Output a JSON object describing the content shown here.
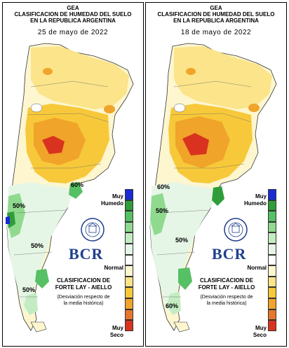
{
  "maps": [
    {
      "header_line1": "GEA",
      "header_line2": "CLASIFICACION DE HUMEDAD DEL SUELO",
      "header_line3": "EN LA REPUBLICA ARGENTINA",
      "date": "25 de mayo de 2022",
      "contour_labels": [
        "60%",
        "50%",
        "50%",
        "50%"
      ]
    },
    {
      "header_line1": "GEA",
      "header_line2": "CLASIFICACION DE HUMEDAD DEL SUELO",
      "header_line3": "EN LA REPUBLICA ARGENTINA",
      "date": "18 de mayo de 2022",
      "contour_labels": [
        "60%",
        "50%",
        "50%",
        "60%"
      ]
    }
  ],
  "legend": {
    "top_label": "Muy\nHumedo",
    "middle_label": "Normal",
    "bottom_label": "Muy\nSeco",
    "colors": [
      "#1a2bd6",
      "#2f9e3a",
      "#55c064",
      "#8fda8f",
      "#c3ecc3",
      "#e6f6e6",
      "#ffffff",
      "#fdf6cf",
      "#fbe48a",
      "#f7c93a",
      "#f0a429",
      "#e7762a",
      "#d9331f"
    ]
  },
  "logo": {
    "text": "BCR",
    "seal_text": "BOLSA DE COMERCIO DE ROSARIO"
  },
  "source": {
    "line1": "CLASIFICACION DE",
    "line2": "FORTE LAY - AIELLO",
    "note_line1": "(Desviación respecto de",
    "note_line2": "la media histórica)"
  }
}
